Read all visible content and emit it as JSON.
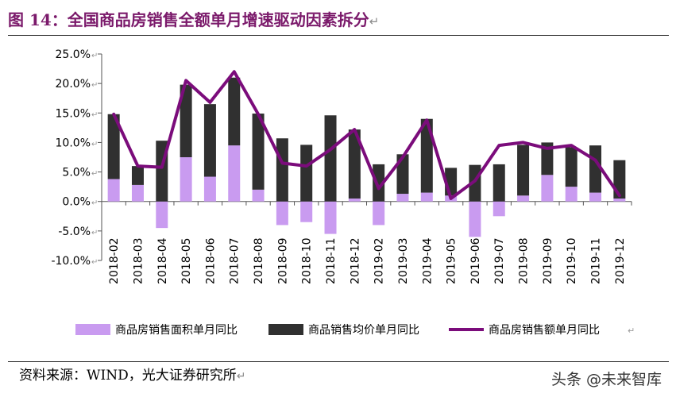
{
  "figure": {
    "title_prefix": "图 14：",
    "title_text": "全国商品房销售全额单月增速驱动因素拆分",
    "return_mark": "↵",
    "source": "资料来源：WIND，光大证券研究所",
    "watermark": "头条 @未来智库"
  },
  "colors": {
    "title": "#7b1a6b",
    "area_bars": "#c99bf0",
    "price_bars": "#303030",
    "line": "#7b0c7b"
  },
  "chart_data": {
    "type": "bar+line",
    "categories": [
      "2018-02",
      "2018-03",
      "2018-04",
      "2018-05",
      "2018-06",
      "2018-07",
      "2018-08",
      "2018-09",
      "2018-10",
      "2018-11",
      "2018-12",
      "2019-02",
      "2019-03",
      "2019-04",
      "2019-05",
      "2019-06",
      "2019-07",
      "2019-08",
      "2019-09",
      "2019-10",
      "2019-11",
      "2019-12"
    ],
    "yticks": [
      "25.0%",
      "20.0%",
      "15.0%",
      "10.0%",
      "5.0%",
      "0.0%",
      "-5.0%",
      "-10.0%"
    ],
    "ylim": [
      -10,
      25
    ],
    "stacked": true,
    "series": [
      {
        "name": "商品房销售面积单月同比",
        "kind": "bar",
        "values": [
          3.8,
          2.8,
          -4.5,
          7.5,
          4.2,
          9.5,
          2.0,
          -4.0,
          -3.5,
          -5.5,
          0.5,
          -4.0,
          1.3,
          1.5,
          1.0,
          -6.0,
          -2.5,
          1.0,
          4.5,
          2.5,
          1.5,
          0.5
        ]
      },
      {
        "name": "商品销售均价单月同比",
        "kind": "bar",
        "values": [
          11.0,
          3.2,
          10.3,
          12.3,
          12.3,
          11.5,
          12.9,
          10.7,
          9.6,
          14.6,
          11.7,
          6.3,
          6.7,
          12.5,
          4.7,
          6.2,
          6.3,
          8.6,
          5.5,
          6.7,
          8.0,
          6.5
        ]
      },
      {
        "name": "商品房销售额单月同比",
        "kind": "line",
        "values": [
          14.8,
          6.0,
          5.8,
          20.5,
          16.8,
          22.0,
          14.8,
          6.5,
          6.0,
          8.8,
          12.2,
          2.2,
          7.5,
          13.8,
          0.5,
          3.5,
          9.5,
          10.0,
          9.0,
          9.5,
          7.0,
          1.0
        ]
      }
    ],
    "legend_position": "bottom",
    "grid": false
  }
}
